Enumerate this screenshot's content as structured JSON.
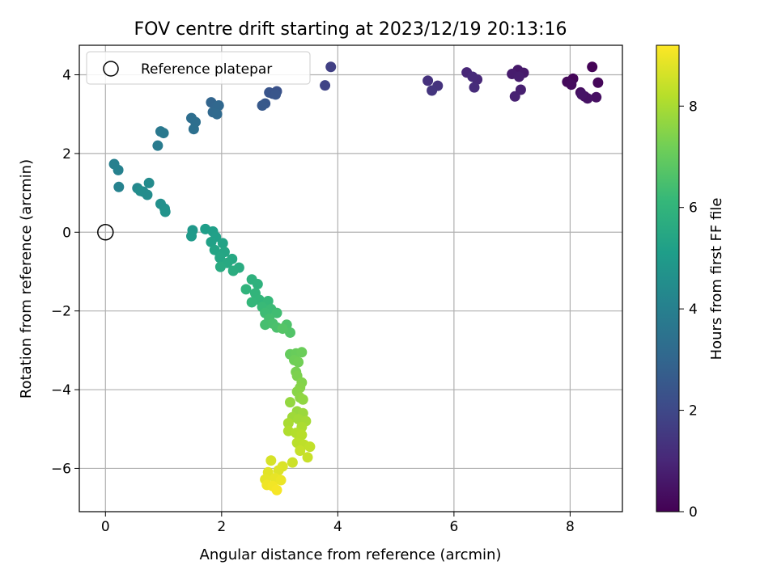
{
  "chart_data": {
    "type": "scatter",
    "title": "FOV centre drift starting at 2023/12/19 20:13:16",
    "xlabel": "Angular distance from reference (arcmin)",
    "ylabel": "Rotation from reference (arcmin)",
    "xlim": [
      -0.45,
      8.9
    ],
    "ylim": [
      -7.1,
      4.75
    ],
    "xticks": [
      0,
      2,
      4,
      6,
      8
    ],
    "yticks": [
      -6,
      -4,
      -2,
      0,
      2,
      4
    ],
    "grid": true,
    "legend": {
      "placement": "top-left",
      "entries": [
        {
          "label": "Reference platepar",
          "marker": "open-circle"
        }
      ]
    },
    "reference_point": {
      "x": 0,
      "y": 0
    },
    "colorbar": {
      "label": "Hours from first FF file",
      "colormap": "viridis",
      "range": [
        0,
        9.2
      ],
      "ticks": [
        0,
        2,
        4,
        6,
        8
      ],
      "colors": [
        "#440154",
        "#482878",
        "#3e4a89",
        "#31688e",
        "#26828e",
        "#1f9e89",
        "#35b779",
        "#6ece58",
        "#b5de2b",
        "#fde725"
      ]
    },
    "series": [
      {
        "color_by": "hours",
        "points": [
          {
            "x": 8.38,
            "y": 4.2,
            "h": 0.05
          },
          {
            "x": 8.05,
            "y": 3.9,
            "h": 0.1
          },
          {
            "x": 8.48,
            "y": 3.8,
            "h": 0.15
          },
          {
            "x": 7.95,
            "y": 3.82,
            "h": 0.2
          },
          {
            "x": 8.02,
            "y": 3.75,
            "h": 0.25
          },
          {
            "x": 8.18,
            "y": 3.55,
            "h": 0.3
          },
          {
            "x": 8.25,
            "y": 3.45,
            "h": 0.35
          },
          {
            "x": 8.45,
            "y": 3.43,
            "h": 0.4
          },
          {
            "x": 8.3,
            "y": 3.4,
            "h": 0.45
          },
          {
            "x": 8.2,
            "y": 3.5,
            "h": 0.5
          },
          {
            "x": 7.1,
            "y": 4.12,
            "h": 0.6
          },
          {
            "x": 7.2,
            "y": 4.05,
            "h": 0.65
          },
          {
            "x": 7.0,
            "y": 4.02,
            "h": 0.7
          },
          {
            "x": 7.12,
            "y": 3.95,
            "h": 0.75
          },
          {
            "x": 7.15,
            "y": 3.62,
            "h": 0.8
          },
          {
            "x": 7.05,
            "y": 3.45,
            "h": 0.85
          },
          {
            "x": 6.22,
            "y": 4.06,
            "h": 1.0
          },
          {
            "x": 6.4,
            "y": 3.88,
            "h": 1.05
          },
          {
            "x": 6.32,
            "y": 3.95,
            "h": 1.1
          },
          {
            "x": 6.35,
            "y": 3.68,
            "h": 1.15
          },
          {
            "x": 5.55,
            "y": 3.85,
            "h": 1.3
          },
          {
            "x": 5.72,
            "y": 3.72,
            "h": 1.35
          },
          {
            "x": 5.62,
            "y": 3.6,
            "h": 1.4
          },
          {
            "x": 3.88,
            "y": 4.2,
            "h": 1.75
          },
          {
            "x": 3.78,
            "y": 3.73,
            "h": 1.85
          },
          {
            "x": 2.95,
            "y": 3.58,
            "h": 2.3
          },
          {
            "x": 2.88,
            "y": 3.52,
            "h": 2.35
          },
          {
            "x": 2.82,
            "y": 3.55,
            "h": 2.4
          },
          {
            "x": 2.93,
            "y": 3.5,
            "h": 2.45
          },
          {
            "x": 2.75,
            "y": 3.27,
            "h": 2.5
          },
          {
            "x": 2.7,
            "y": 3.22,
            "h": 2.55
          },
          {
            "x": 1.82,
            "y": 3.3,
            "h": 2.95
          },
          {
            "x": 1.9,
            "y": 3.18,
            "h": 3.0
          },
          {
            "x": 1.95,
            "y": 3.22,
            "h": 3.05
          },
          {
            "x": 1.85,
            "y": 3.05,
            "h": 3.1
          },
          {
            "x": 1.92,
            "y": 3.0,
            "h": 3.15
          },
          {
            "x": 1.48,
            "y": 2.9,
            "h": 3.3
          },
          {
            "x": 1.55,
            "y": 2.8,
            "h": 3.35
          },
          {
            "x": 1.52,
            "y": 2.62,
            "h": 3.4
          },
          {
            "x": 0.95,
            "y": 2.56,
            "h": 3.7
          },
          {
            "x": 1.0,
            "y": 2.52,
            "h": 3.75
          },
          {
            "x": 0.9,
            "y": 2.2,
            "h": 3.8
          },
          {
            "x": 0.15,
            "y": 1.73,
            "h": 4.0
          },
          {
            "x": 0.22,
            "y": 1.58,
            "h": 4.05
          },
          {
            "x": 0.23,
            "y": 1.15,
            "h": 4.1
          },
          {
            "x": 0.55,
            "y": 1.12,
            "h": 4.3
          },
          {
            "x": 0.65,
            "y": 1.03,
            "h": 4.35
          },
          {
            "x": 0.75,
            "y": 1.25,
            "h": 4.4
          },
          {
            "x": 0.72,
            "y": 0.95,
            "h": 4.45
          },
          {
            "x": 0.6,
            "y": 1.05,
            "h": 4.5
          },
          {
            "x": 0.95,
            "y": 0.72,
            "h": 4.6
          },
          {
            "x": 1.02,
            "y": 0.6,
            "h": 4.65
          },
          {
            "x": 1.03,
            "y": 0.52,
            "h": 4.7
          },
          {
            "x": 1.5,
            "y": 0.05,
            "h": 4.9
          },
          {
            "x": 1.48,
            "y": -0.1,
            "h": 4.95
          },
          {
            "x": 1.72,
            "y": 0.08,
            "h": 5.1
          },
          {
            "x": 1.85,
            "y": 0.02,
            "h": 5.15
          },
          {
            "x": 1.9,
            "y": -0.12,
            "h": 5.2
          },
          {
            "x": 1.82,
            "y": -0.25,
            "h": 5.25
          },
          {
            "x": 2.02,
            "y": -0.28,
            "h": 5.3
          },
          {
            "x": 1.88,
            "y": -0.45,
            "h": 5.35
          },
          {
            "x": 2.05,
            "y": -0.5,
            "h": 5.4
          },
          {
            "x": 1.97,
            "y": -0.65,
            "h": 5.45
          },
          {
            "x": 2.18,
            "y": -0.68,
            "h": 5.5
          },
          {
            "x": 2.1,
            "y": -0.78,
            "h": 5.55
          },
          {
            "x": 1.98,
            "y": -0.88,
            "h": 5.6
          },
          {
            "x": 2.3,
            "y": -0.9,
            "h": 5.65
          },
          {
            "x": 2.2,
            "y": -0.98,
            "h": 5.7
          },
          {
            "x": 2.52,
            "y": -1.2,
            "h": 5.85
          },
          {
            "x": 2.62,
            "y": -1.32,
            "h": 5.9
          },
          {
            "x": 2.42,
            "y": -1.45,
            "h": 5.95
          },
          {
            "x": 2.58,
            "y": -1.55,
            "h": 6.0
          },
          {
            "x": 2.65,
            "y": -1.72,
            "h": 6.05
          },
          {
            "x": 2.52,
            "y": -1.78,
            "h": 6.1
          },
          {
            "x": 2.8,
            "y": -1.75,
            "h": 6.15
          },
          {
            "x": 2.7,
            "y": -1.9,
            "h": 6.2
          },
          {
            "x": 2.85,
            "y": -1.95,
            "h": 6.25
          },
          {
            "x": 2.75,
            "y": -2.05,
            "h": 6.3
          },
          {
            "x": 2.95,
            "y": -2.05,
            "h": 6.35
          },
          {
            "x": 2.82,
            "y": -2.2,
            "h": 6.4
          },
          {
            "x": 2.75,
            "y": -2.35,
            "h": 6.45
          },
          {
            "x": 2.88,
            "y": -2.32,
            "h": 6.5
          },
          {
            "x": 2.95,
            "y": -2.42,
            "h": 6.55
          },
          {
            "x": 3.12,
            "y": -2.35,
            "h": 6.6
          },
          {
            "x": 3.18,
            "y": -2.55,
            "h": 6.65
          },
          {
            "x": 3.05,
            "y": -2.45,
            "h": 6.7
          },
          {
            "x": 3.18,
            "y": -3.1,
            "h": 7.0
          },
          {
            "x": 3.28,
            "y": -3.08,
            "h": 7.05
          },
          {
            "x": 3.38,
            "y": -3.05,
            "h": 7.1
          },
          {
            "x": 3.25,
            "y": -3.25,
            "h": 7.15
          },
          {
            "x": 3.32,
            "y": -3.3,
            "h": 7.2
          },
          {
            "x": 3.28,
            "y": -3.55,
            "h": 7.3
          },
          {
            "x": 3.3,
            "y": -3.65,
            "h": 7.35
          },
          {
            "x": 3.38,
            "y": -3.82,
            "h": 7.45
          },
          {
            "x": 3.35,
            "y": -3.95,
            "h": 7.5
          },
          {
            "x": 3.3,
            "y": -4.05,
            "h": 7.55
          },
          {
            "x": 3.35,
            "y": -4.2,
            "h": 7.6
          },
          {
            "x": 3.4,
            "y": -4.25,
            "h": 7.65
          },
          {
            "x": 3.18,
            "y": -4.32,
            "h": 7.7
          },
          {
            "x": 3.3,
            "y": -4.55,
            "h": 7.75
          },
          {
            "x": 3.4,
            "y": -4.6,
            "h": 7.8
          },
          {
            "x": 3.22,
            "y": -4.7,
            "h": 7.85
          },
          {
            "x": 3.32,
            "y": -4.75,
            "h": 7.9
          },
          {
            "x": 3.45,
            "y": -4.8,
            "h": 7.95
          },
          {
            "x": 3.15,
            "y": -4.85,
            "h": 8.0
          },
          {
            "x": 3.38,
            "y": -4.95,
            "h": 8.05
          },
          {
            "x": 3.15,
            "y": -5.05,
            "h": 8.1
          },
          {
            "x": 3.28,
            "y": -5.1,
            "h": 8.15
          },
          {
            "x": 3.38,
            "y": -5.15,
            "h": 8.2
          },
          {
            "x": 3.3,
            "y": -5.35,
            "h": 8.25
          },
          {
            "x": 3.42,
            "y": -5.4,
            "h": 8.3
          },
          {
            "x": 3.52,
            "y": -5.45,
            "h": 8.35
          },
          {
            "x": 3.35,
            "y": -5.55,
            "h": 8.4
          },
          {
            "x": 3.48,
            "y": -5.72,
            "h": 8.45
          },
          {
            "x": 3.22,
            "y": -5.85,
            "h": 8.5
          },
          {
            "x": 2.85,
            "y": -5.8,
            "h": 8.65
          },
          {
            "x": 3.05,
            "y": -5.95,
            "h": 8.7
          },
          {
            "x": 2.98,
            "y": -6.05,
            "h": 8.75
          },
          {
            "x": 2.8,
            "y": -6.1,
            "h": 8.8
          },
          {
            "x": 2.75,
            "y": -6.28,
            "h": 8.85
          },
          {
            "x": 2.92,
            "y": -6.25,
            "h": 8.9
          },
          {
            "x": 3.02,
            "y": -6.3,
            "h": 8.95
          },
          {
            "x": 2.78,
            "y": -6.42,
            "h": 9.0
          },
          {
            "x": 2.88,
            "y": -6.45,
            "h": 9.05
          },
          {
            "x": 2.95,
            "y": -6.55,
            "h": 9.1
          }
        ]
      }
    ]
  }
}
